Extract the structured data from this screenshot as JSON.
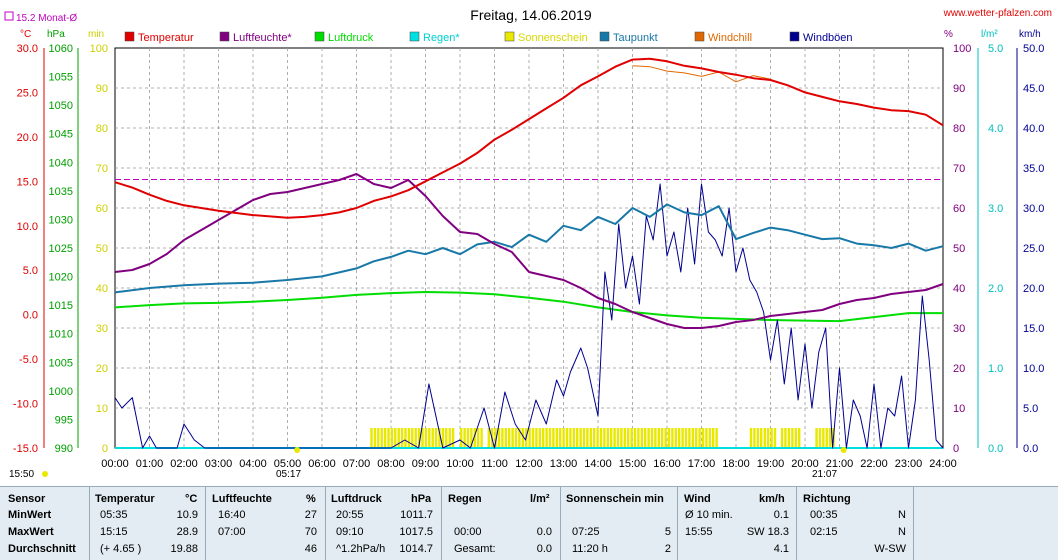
{
  "header": {
    "title": "Freitag, 14.06.2019",
    "site": "www.wetter-pfalzen.com",
    "month_avg_label": "15.2 Monat-Ø"
  },
  "units": {
    "celsius": "°C",
    "hpa": "hPa",
    "min": "min",
    "percent": "%",
    "l_m2": "l/m²",
    "kmh": "km/h"
  },
  "axes_labels": {
    "temp": [
      "30.0",
      "25.0",
      "20.0",
      "15.0",
      "10.0",
      "5.0",
      "0.0",
      "-5.0",
      "-10.0",
      "-15.0"
    ],
    "pressure": [
      "1060",
      "1055",
      "1050",
      "1045",
      "1040",
      "1035",
      "1030",
      "1025",
      "1020",
      "1015",
      "1010",
      "1005",
      "1000",
      "995",
      "990"
    ],
    "minutes": [
      "100",
      "90",
      "80",
      "70",
      "60",
      "50",
      "40",
      "30",
      "20",
      "10",
      "0"
    ],
    "percent": [
      "100",
      "90",
      "80",
      "70",
      "60",
      "50",
      "40",
      "30",
      "20",
      "10",
      "0"
    ],
    "rain": [
      "5.0",
      "4.0",
      "3.0",
      "2.0",
      "1.0",
      "0.0"
    ],
    "wind": [
      "50.0",
      "45.0",
      "40.0",
      "35.0",
      "30.0",
      "25.0",
      "20.0",
      "15.0",
      "10.0",
      "5.0",
      "0.0"
    ],
    "time": [
      "00:00",
      "01:00",
      "02:00",
      "03:00",
      "04:00",
      "05:00",
      "06:00",
      "07:00",
      "08:00",
      "09:00",
      "10:00",
      "11:00",
      "12:00",
      "13:00",
      "14:00",
      "15:00",
      "16:00",
      "17:00",
      "18:00",
      "19:00",
      "20:00",
      "21:00",
      "22:00",
      "23:00",
      "24:00"
    ]
  },
  "sun": {
    "rise": "05:17",
    "set": "21:07",
    "start_time": "15:50"
  },
  "legend": [
    {
      "label": "Temperatur",
      "color": "#e00000"
    },
    {
      "label": "Luftfeuchte*",
      "color": "#800080"
    },
    {
      "label": "Luftdruck",
      "color": "#00dd00"
    },
    {
      "label": "Regen*",
      "color": "#00e0e0"
    },
    {
      "label": "Sonnenschein",
      "color": "#e8e800"
    },
    {
      "label": "Taupunkt",
      "color": "#1878a8"
    },
    {
      "label": "Windchill",
      "color": "#e06800"
    },
    {
      "label": "Windböen",
      "color": "#000090"
    }
  ],
  "chart_data": {
    "type": "line",
    "title": "Freitag, 14.06.2019",
    "xlim": [
      0,
      24
    ],
    "y_axes": {
      "temperature_c": [
        -15,
        30
      ],
      "pressure_hpa": [
        990,
        1060
      ],
      "sunshine_min": [
        0,
        100
      ],
      "humidity_percent": [
        0,
        100
      ],
      "rain_l_m2": [
        0,
        5
      ],
      "wind_kmh": [
        0,
        50
      ]
    },
    "month_avg_temp": 15.2,
    "series": [
      {
        "name": "Temperatur",
        "unit": "°C",
        "color": "#e00000",
        "x": [
          0,
          0.5,
          1,
          1.5,
          2,
          3,
          4,
          5,
          5.5,
          6,
          6.5,
          7,
          7.5,
          8,
          8.5,
          9,
          9.5,
          10,
          10.5,
          11,
          11.5,
          12,
          12.5,
          13,
          13.5,
          14,
          14.5,
          15,
          15.5,
          16,
          16.5,
          17,
          17.5,
          18,
          18.5,
          19,
          19.5,
          20,
          20.5,
          21,
          21.5,
          22,
          22.5,
          23,
          23.5,
          24
        ],
        "y": [
          14.9,
          14.3,
          13.5,
          12.8,
          12.3,
          11.7,
          11.2,
          10.9,
          11.0,
          11.2,
          11.5,
          12.0,
          12.8,
          13.3,
          14.0,
          15.0,
          16.0,
          17.0,
          18.2,
          19.7,
          20.8,
          22.0,
          23.2,
          24.4,
          25.8,
          26.8,
          27.9,
          28.7,
          28.8,
          28.5,
          28.0,
          27.7,
          27.3,
          27.0,
          26.6,
          26.4,
          25.8,
          25.0,
          24.5,
          24.0,
          23.7,
          23.3,
          23.0,
          22.9,
          22.5,
          21.3
        ]
      },
      {
        "name": "Luftfeuchte*",
        "unit": "%",
        "color": "#800080",
        "x": [
          0,
          0.5,
          1,
          1.5,
          2,
          2.5,
          3,
          3.5,
          4,
          4.5,
          5,
          5.5,
          6,
          6.5,
          7,
          7.5,
          8,
          8.5,
          9,
          9.5,
          10,
          10.5,
          11,
          11.5,
          12,
          12.5,
          13,
          13.5,
          14,
          14.5,
          15,
          15.5,
          16,
          16.5,
          17,
          17.5,
          18,
          18.5,
          19,
          19.5,
          20,
          20.5,
          21,
          21.5,
          22,
          22.5,
          23,
          23.5,
          24
        ],
        "y": [
          44,
          44.5,
          46,
          48.5,
          52,
          54.5,
          57,
          59.5,
          62,
          63.5,
          64,
          65,
          66,
          67,
          68.5,
          66,
          65,
          67,
          63,
          58,
          54,
          53.5,
          51,
          49,
          44,
          43,
          42,
          40,
          37.5,
          36,
          34,
          32.5,
          31,
          30,
          30,
          30.5,
          31.5,
          32,
          33,
          33.5,
          34,
          34.5,
          36,
          37,
          37.5,
          38.5,
          39,
          39.5,
          41
        ]
      },
      {
        "name": "Luftdruck",
        "unit": "hPa",
        "color": "#00dd00",
        "x": [
          0,
          1,
          2,
          3,
          4,
          5,
          6,
          7,
          8,
          9,
          10,
          11,
          12,
          13,
          14,
          15,
          16,
          17,
          18,
          19,
          20,
          21,
          22,
          23,
          24
        ],
        "y": [
          1014.6,
          1015.0,
          1015.3,
          1015.4,
          1015.6,
          1015.9,
          1016.3,
          1016.8,
          1017.1,
          1017.3,
          1017.2,
          1016.9,
          1016.3,
          1015.6,
          1014.6,
          1013.8,
          1013.2,
          1012.8,
          1012.6,
          1012.4,
          1012.3,
          1012.2,
          1012.9,
          1013.6,
          1013.6
        ]
      },
      {
        "name": "Regen*",
        "unit": "l/m²",
        "color": "#00e0e0",
        "x": [
          0,
          24
        ],
        "y": [
          0,
          0
        ]
      },
      {
        "name": "Taupunkt",
        "unit": "°C",
        "color": "#1878a8",
        "x": [
          0,
          1,
          2,
          3,
          4,
          5,
          6,
          7,
          7.5,
          8,
          8.5,
          9,
          9.5,
          10,
          10.5,
          11,
          11.5,
          12,
          12.5,
          13,
          13.5,
          14,
          14.5,
          15,
          15.5,
          16,
          16.5,
          17,
          17.5,
          18,
          18.5,
          19,
          19.5,
          20,
          20.5,
          21,
          21.5,
          22,
          22.5,
          23,
          23.5,
          24
        ],
        "y": [
          2.5,
          3.0,
          3.3,
          3.5,
          3.6,
          3.9,
          4.3,
          5.2,
          6.0,
          6.5,
          7.2,
          6.8,
          7.5,
          6.8,
          7.9,
          8.2,
          7.6,
          9.0,
          8.2,
          10.0,
          9.5,
          11.0,
          10.2,
          12.0,
          11.0,
          12.4,
          11.5,
          11.2,
          12.2,
          8.5,
          9.2,
          9.8,
          9.5,
          9.0,
          8.5,
          8.6,
          8.0,
          7.8,
          7.5,
          8.0,
          7.2,
          7.7
        ]
      },
      {
        "name": "Windchill",
        "unit": "°C",
        "color": "#e06800",
        "x": [
          15,
          15.5,
          16,
          16.5,
          17,
          17.5,
          18,
          18.5,
          19
        ],
        "y": [
          28.0,
          27.9,
          27.4,
          27.2,
          26.8,
          27.3,
          26.2,
          26.9,
          26.5
        ]
      },
      {
        "name": "Windböen",
        "unit": "km/h",
        "color": "#000090",
        "x": [
          0,
          0.2,
          0.5,
          0.8,
          1,
          1.2,
          1.5,
          1.8,
          2,
          2.3,
          2.6,
          3,
          3.3,
          3.6,
          4,
          5,
          6,
          7,
          8,
          8.4,
          8.8,
          9.1,
          9.3,
          9.5,
          10,
          10.3,
          10.7,
          11,
          11.3,
          11.6,
          11.9,
          12.2,
          12.5,
          12.8,
          13,
          13.2,
          13.5,
          13.7,
          14,
          14.2,
          14.4,
          14.6,
          14.8,
          15,
          15.2,
          15.4,
          15.6,
          15.8,
          16,
          16.2,
          16.4,
          16.6,
          16.8,
          17,
          17.2,
          17.4,
          17.6,
          17.8,
          18,
          18.2,
          18.4,
          18.6,
          18.8,
          19,
          19.2,
          19.4,
          19.6,
          19.8,
          20,
          20.2,
          20.4,
          20.6,
          20.8,
          21,
          21.2,
          21.4,
          21.6,
          21.8,
          22,
          22.2,
          22.4,
          22.6,
          22.8,
          23,
          23.2,
          23.4,
          23.6,
          23.8,
          24
        ],
        "y": [
          6.3,
          5.0,
          6.3,
          0,
          1.5,
          0,
          0,
          0,
          3.0,
          1.0,
          0,
          0,
          0,
          0,
          0,
          0,
          0,
          0,
          0,
          1.0,
          0,
          8.0,
          4.0,
          0,
          1.0,
          0,
          5.0,
          0,
          7.0,
          3.0,
          1.0,
          6.0,
          3.0,
          8.5,
          6.5,
          9.5,
          12.5,
          10.0,
          4.0,
          22.0,
          16.0,
          28.0,
          20.0,
          24.0,
          18.0,
          29.0,
          26.0,
          33.0,
          24.0,
          27.0,
          22.0,
          30.0,
          23.0,
          33.0,
          27.0,
          26.0,
          24.0,
          30.0,
          22.0,
          25.0,
          21.0,
          19.5,
          17.0,
          11.0,
          16.0,
          8.0,
          15.0,
          6.0,
          13.0,
          5.0,
          12.0,
          15.0,
          0,
          10.0,
          0,
          6.0,
          4.0,
          0,
          8.0,
          0,
          5.0,
          4.0,
          9.0,
          0,
          6.0,
          19.0,
          11.0,
          1.0,
          0
        ]
      },
      {
        "name": "Sonnenschein",
        "unit": "min",
        "color": "#e8e800",
        "intervals": [
          [
            7.4,
            9.8
          ],
          [
            10.0,
            10.6
          ],
          [
            10.8,
            17.5
          ],
          [
            18.4,
            18.7
          ],
          [
            18.8,
            19.1
          ],
          [
            19.3,
            19.5
          ],
          [
            19.6,
            19.8
          ],
          [
            20.3,
            20.8
          ]
        ]
      }
    ]
  },
  "stats": {
    "headers": {
      "sensor": "Sensor",
      "temp": "Temperatur",
      "temp_unit": "°C",
      "hum": "Luftfeuchte",
      "hum_unit": "%",
      "press": "Luftdruck",
      "press_unit": "hPa",
      "rain": "Regen",
      "rain_unit": "l/m²",
      "sun": "Sonnenschein min",
      "wind": "Wind",
      "wind_unit": "km/h",
      "dir": "Richtung"
    },
    "rows": [
      {
        "label": "MinWert",
        "temp_t": "05:35",
        "temp_v": "10.9",
        "hum_t": "16:40",
        "hum_v": "27",
        "press_t": "20:55",
        "press_v": "1011.7",
        "rain_t": "",
        "rain_v": "",
        "sun_t": "",
        "sun_v": "",
        "wind_t": "Ø 10 min.",
        "wind_v": "0.1",
        "dir_t": "00:35",
        "dir_v": "N"
      },
      {
        "label": "MaxWert",
        "temp_t": "15:15",
        "temp_v": "28.9",
        "hum_t": "07:00",
        "hum_v": "70",
        "press_t": "09:10",
        "press_v": "1017.5",
        "rain_t": "00:00",
        "rain_v": "0.0",
        "sun_t": "07:25",
        "sun_v": "5",
        "wind_t": "15:55",
        "wind_v": "SW 18.3",
        "dir_t": "02:15",
        "dir_v": "N"
      },
      {
        "label": "Durchschnitt",
        "temp_t": "(+ 4.65 )",
        "temp_v": "19.88",
        "hum_t": "",
        "hum_v": "46",
        "press_t": "^1.2hPa/h",
        "press_v": "1014.7",
        "rain_t": "Gesamt:",
        "rain_v": "0.0",
        "sun_t": "11:20 h",
        "sun_v": "2",
        "wind_t": "",
        "wind_v": "4.1",
        "dir_t": "",
        "dir_v": "W-SW"
      }
    ]
  }
}
